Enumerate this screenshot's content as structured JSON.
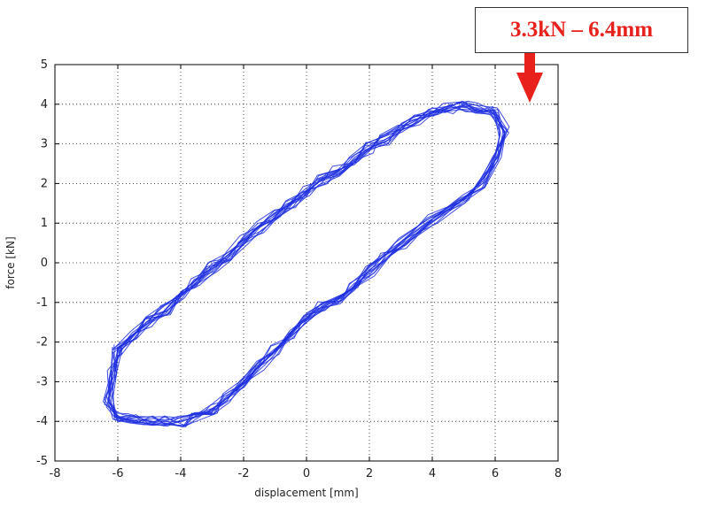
{
  "chart_data": {
    "type": "line",
    "title": "",
    "xlabel": "displacement [mm]",
    "ylabel": "force [kN]",
    "xlim": [
      -8,
      8
    ],
    "ylim": [
      -5,
      5
    ],
    "xticks": [
      -8,
      -6,
      -4,
      -2,
      0,
      2,
      4,
      6,
      8
    ],
    "yticks": [
      -5,
      -4,
      -3,
      -2,
      -1,
      0,
      1,
      2,
      3,
      4,
      5
    ],
    "grid": true,
    "line_color": "#1f2fe0",
    "series": [
      {
        "x": [
          -6.0,
          -5.5,
          -5.0,
          -4.5,
          -4.0,
          -3.5,
          -3.0,
          -2.5,
          -2.0,
          -1.5,
          -1.0,
          -0.5,
          0.0,
          0.5,
          1.0,
          1.5,
          2.0,
          2.5,
          3.0,
          3.5,
          4.0,
          4.5,
          5.0,
          5.5,
          6.0,
          6.3,
          6.1,
          5.6,
          5.0,
          4.0,
          3.0,
          2.5,
          2.0,
          1.5,
          1.0,
          0.5,
          0.0,
          -0.5,
          -1.0,
          -1.5,
          -2.0,
          -2.5,
          -3.0,
          -3.5,
          -4.0,
          -4.5,
          -5.0,
          -5.5,
          -6.0,
          -6.3,
          -6.2,
          -6.0
        ],
        "y": [
          -2.2,
          -1.8,
          -1.5,
          -1.2,
          -0.8,
          -0.5,
          -0.1,
          0.2,
          0.6,
          0.9,
          1.2,
          1.5,
          1.8,
          2.1,
          2.3,
          2.6,
          2.9,
          3.1,
          3.4,
          3.6,
          3.8,
          3.9,
          3.95,
          3.9,
          3.8,
          3.3,
          2.6,
          2.0,
          1.6,
          1.1,
          0.5,
          0.2,
          -0.2,
          -0.6,
          -0.9,
          -1.1,
          -1.4,
          -1.8,
          -2.2,
          -2.6,
          -3.0,
          -3.4,
          -3.7,
          -3.9,
          -4.0,
          -4.0,
          -4.0,
          -3.95,
          -3.9,
          -3.5,
          -2.8,
          -2.2
        ]
      }
    ]
  },
  "annotation": {
    "text": "3.3kN – 6.4mm",
    "text_color": "#e8211c",
    "arrow_color": "#e8211c"
  }
}
